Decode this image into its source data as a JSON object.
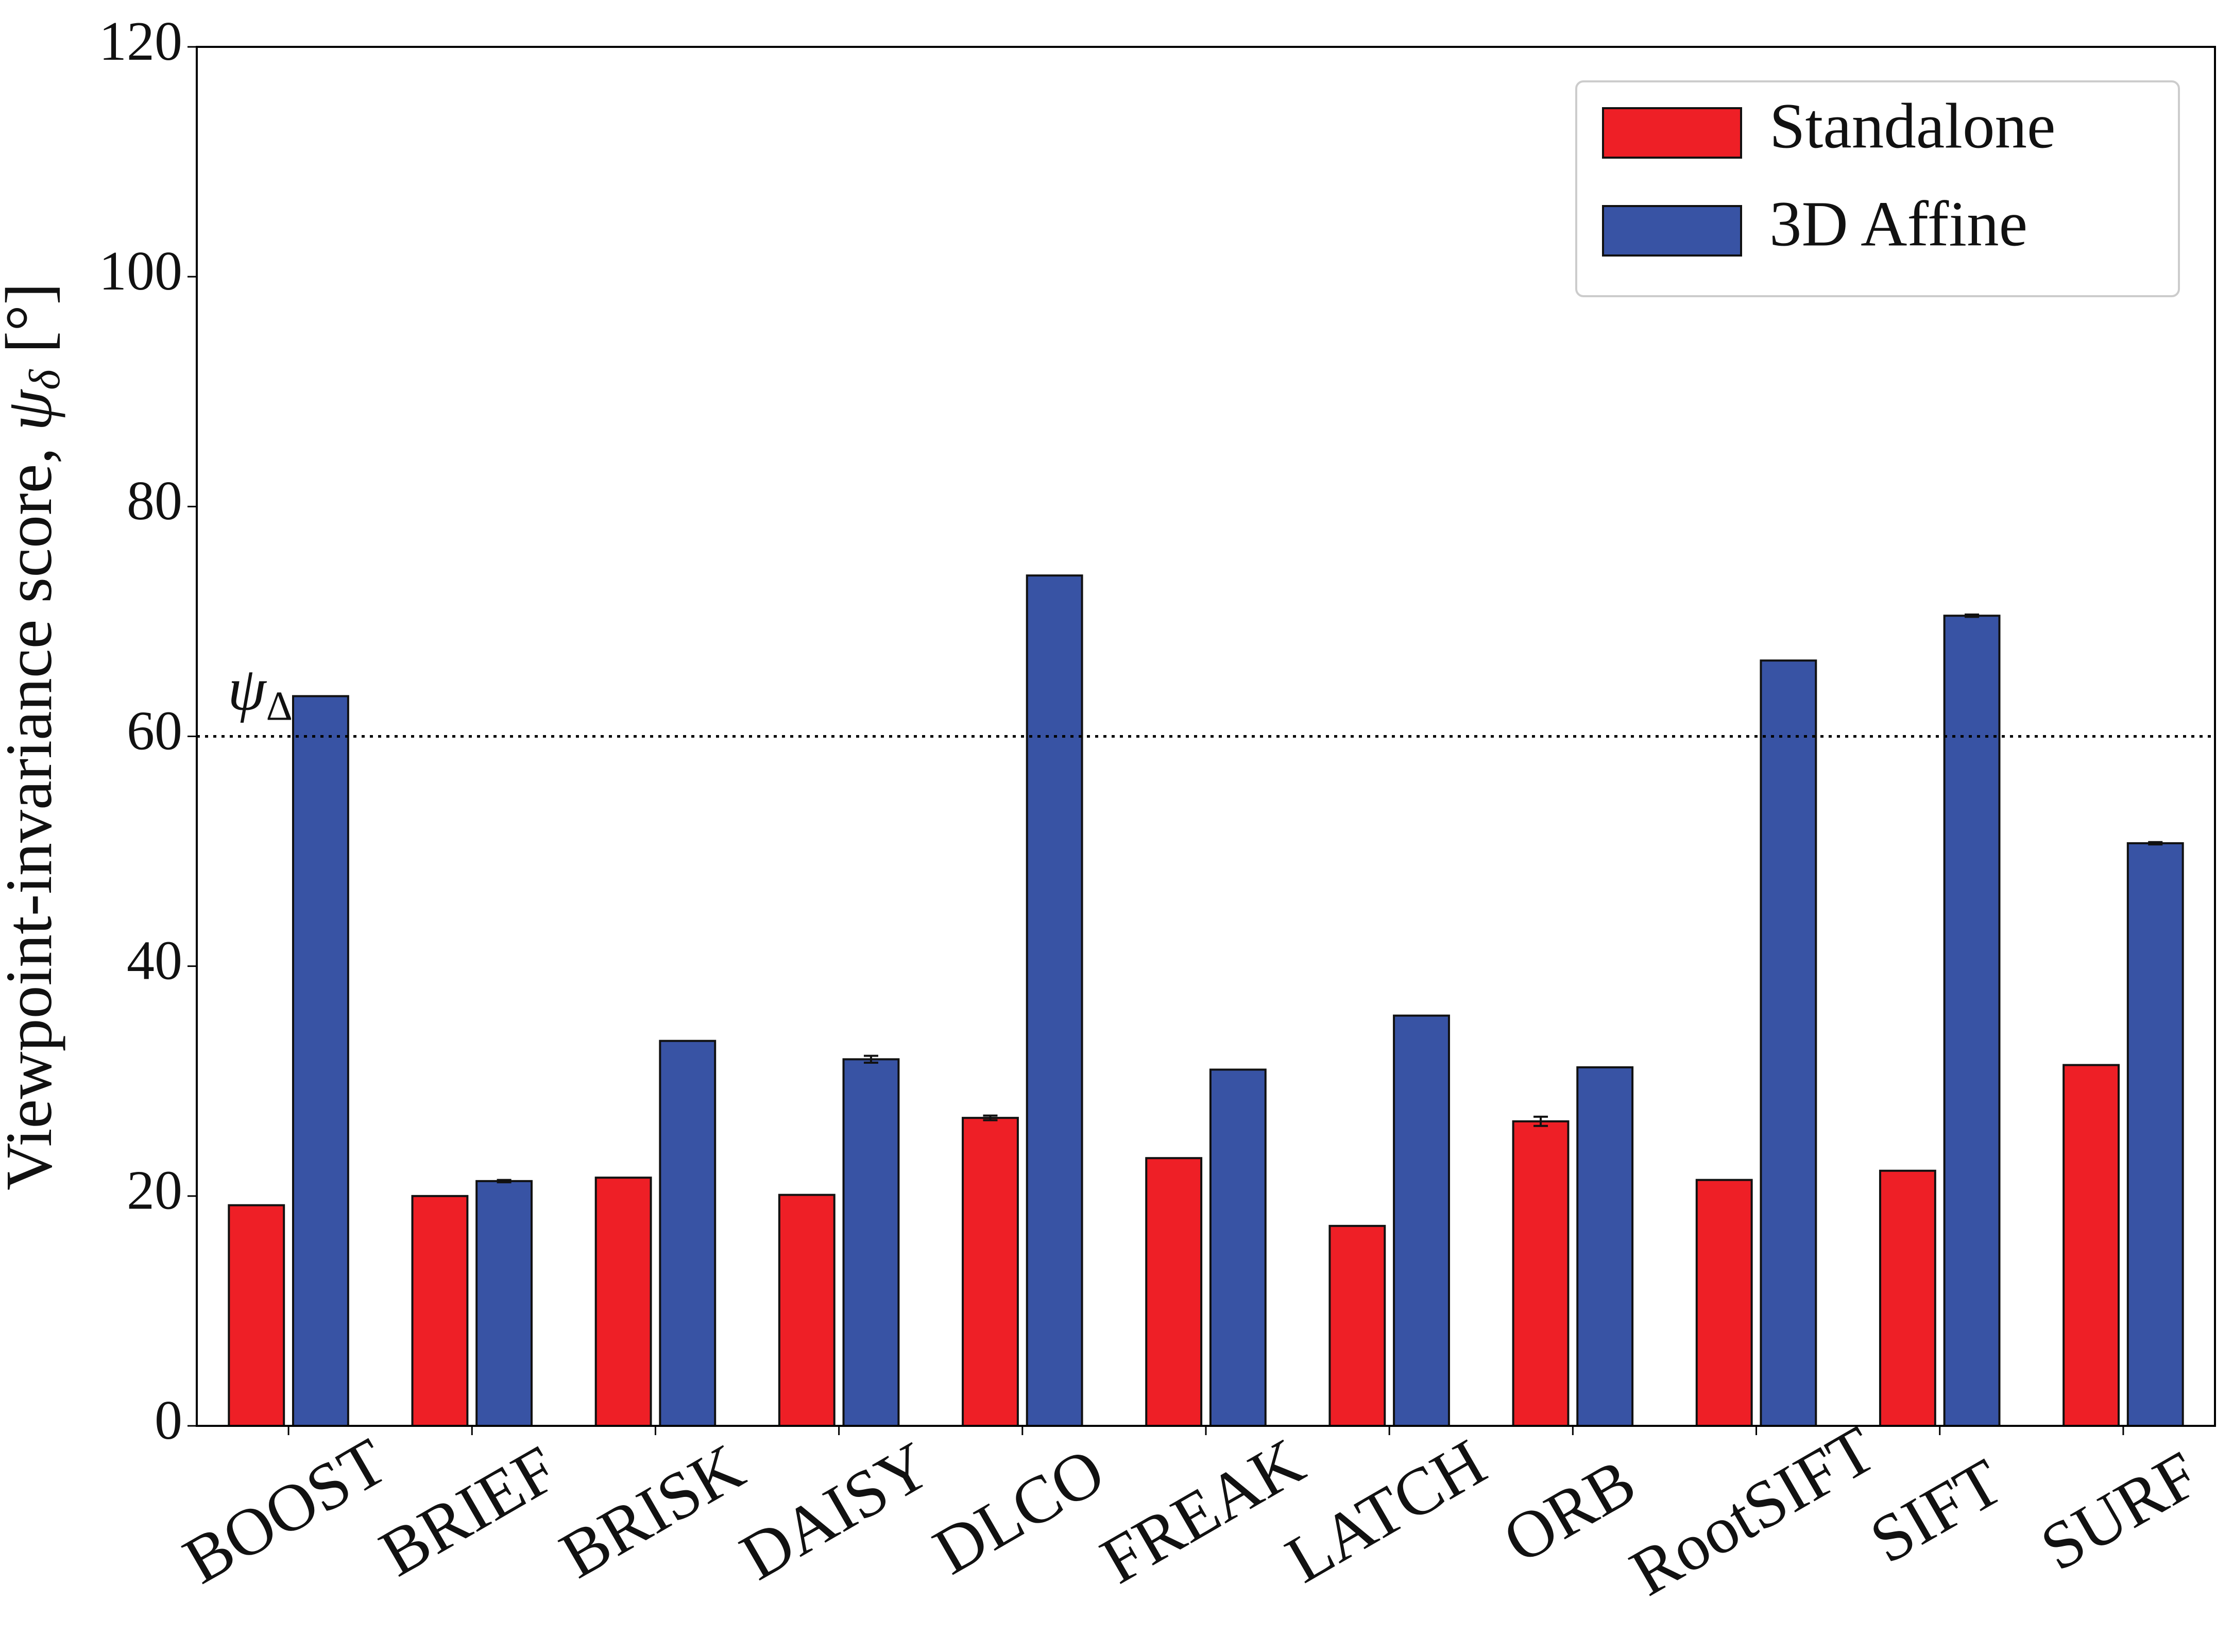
{
  "chart_data": {
    "type": "bar",
    "y_label": {
      "text": "Viewpoint-invariance score, ",
      "symbol": "ψ",
      "subscript": "δ",
      "unit": " [°]"
    },
    "categories": [
      "BOOST",
      "BRIEF",
      "BRISK",
      "DAISY",
      "DLCO",
      "FREAK",
      "LATCH",
      "ORB",
      "RootSIFT",
      "SIFT",
      "SURF"
    ],
    "series": [
      {
        "name": "Standalone",
        "color": "#ee1f26",
        "values": [
          19.2,
          20.0,
          21.6,
          20.1,
          26.8,
          23.3,
          17.4,
          26.5,
          21.4,
          22.2,
          31.4
        ],
        "errors": [
          0,
          0,
          0,
          0,
          0.2,
          0,
          0,
          0.4,
          0,
          0,
          0
        ]
      },
      {
        "name": "3D Affine",
        "color": "#3853a4",
        "values": [
          63.5,
          21.3,
          33.5,
          31.9,
          74.0,
          31.0,
          35.7,
          31.2,
          66.6,
          70.5,
          50.7
        ],
        "errors": [
          0,
          0.1,
          0,
          0.3,
          0,
          0,
          0,
          0,
          0,
          0.1,
          0.1
        ]
      }
    ],
    "threshold": {
      "value": 60,
      "symbol": "ψ",
      "subscript": "Δ"
    },
    "ylim": [
      0,
      120
    ],
    "yticks": [
      0,
      20,
      40,
      60,
      80,
      100,
      120
    ],
    "grid": false,
    "legend": "upper right"
  }
}
